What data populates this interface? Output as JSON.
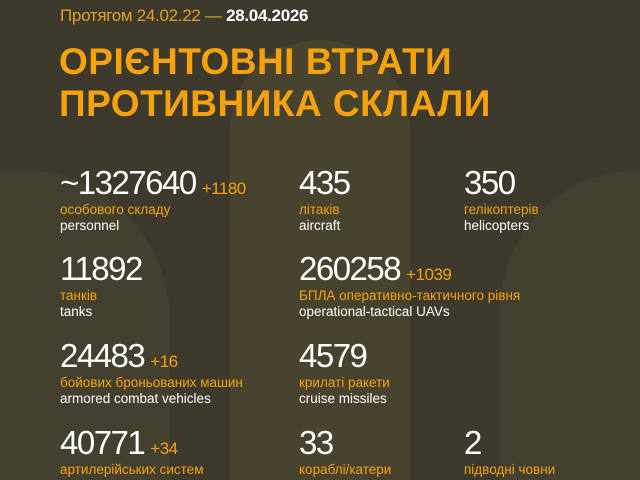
{
  "header": {
    "period_prefix": "Протягом 24.02.22 —",
    "period_end": "28.04.2026"
  },
  "title": {
    "line1": "ОРІЄНТОВНІ ВТРАТИ",
    "line2": "ПРОТИВНИКА СКЛАЛИ"
  },
  "colors": {
    "background": "#3d3a2d",
    "accent": "#f5a20c",
    "text": "#ffffff"
  },
  "stats": [
    {
      "value": "~1327640",
      "delta": "+1180",
      "ua": "особового складу",
      "en": "personnel"
    },
    {
      "value": "435",
      "delta": "",
      "ua": "літаків",
      "en": "aircraft"
    },
    {
      "value": "350",
      "delta": "",
      "ua": "гелікоптерів",
      "en": "helicopters"
    },
    {
      "value": "11892",
      "delta": "",
      "ua": "танків",
      "en": "tanks"
    },
    {
      "value": "260258",
      "delta": "+1039",
      "ua": "БПЛА оперативно-тактичного рівня",
      "en": "operational-tactical UAVs"
    },
    {
      "value": "24483",
      "delta": "+16",
      "ua": "бойових броньованих машин",
      "en": "armored combat vehicles"
    },
    {
      "value": "4579",
      "delta": "",
      "ua": "крилаті ракети",
      "en": "cruise missiles"
    },
    {
      "value": "40771",
      "delta": "+34",
      "ua": "артилерійських систем",
      "en": ""
    },
    {
      "value": "33",
      "delta": "",
      "ua": "кораблі/катери",
      "en": ""
    },
    {
      "value": "2",
      "delta": "",
      "ua": "підводні човни",
      "en": ""
    }
  ]
}
